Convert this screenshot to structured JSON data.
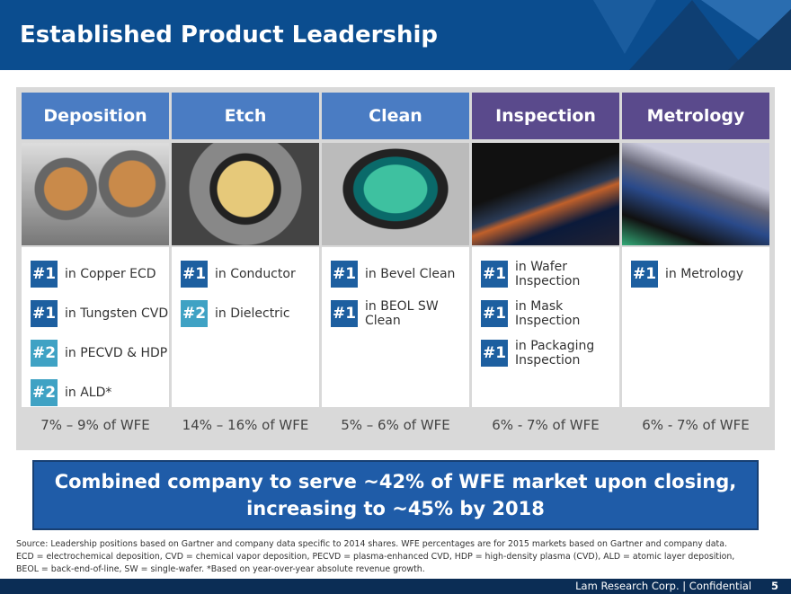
{
  "header": {
    "title": "Established Product Leadership"
  },
  "columns": [
    {
      "header": "Deposition",
      "color": "#4a7cc3",
      "share": "7% – 9% of WFE",
      "rankings": [
        {
          "rank": "#1",
          "color": "#1d5fa0",
          "lines": [
            "in Copper ECD"
          ]
        },
        {
          "rank": "#1",
          "color": "#1d5fa0",
          "lines": [
            "in Tungsten CVD"
          ]
        },
        {
          "rank": "#2",
          "color": "#3fa2c4",
          "lines": [
            "in PECVD & HDP"
          ]
        },
        {
          "rank": "#2",
          "color": "#3fa2c4",
          "lines": [
            "in ALD*"
          ]
        }
      ]
    },
    {
      "header": "Etch",
      "color": "#4a7cc3",
      "share": "14% – 16% of WFE",
      "rankings": [
        {
          "rank": "#1",
          "color": "#1d5fa0",
          "lines": [
            "in Conductor"
          ]
        },
        {
          "rank": "#2",
          "color": "#3fa2c4",
          "lines": [
            "in Dielectric"
          ]
        }
      ]
    },
    {
      "header": "Clean",
      "color": "#4a7cc3",
      "share": "5% – 6% of WFE",
      "rankings": [
        {
          "rank": "#1",
          "color": "#1d5fa0",
          "lines": [
            "in Bevel Clean"
          ]
        },
        {
          "rank": "#1",
          "color": "#1d5fa0",
          "lines": [
            "in BEOL SW",
            "Clean"
          ]
        }
      ]
    },
    {
      "header": "Inspection",
      "color": "#5a4a8c",
      "share": "6% - 7% of WFE",
      "rankings": [
        {
          "rank": "#1",
          "color": "#1d5fa0",
          "lines": [
            "in Wafer",
            "Inspection"
          ]
        },
        {
          "rank": "#1",
          "color": "#1d5fa0",
          "lines": [
            "in Mask",
            "Inspection"
          ]
        },
        {
          "rank": "#1",
          "color": "#1d5fa0",
          "lines": [
            "in Packaging",
            "Inspection"
          ]
        }
      ]
    },
    {
      "header": "Metrology",
      "color": "#5a4a8c",
      "share": "6% - 7% of WFE",
      "rankings": [
        {
          "rank": "#1",
          "color": "#1d5fa0",
          "lines": [
            "in Metrology"
          ]
        }
      ]
    }
  ],
  "banner": {
    "lines": [
      "Combined company to serve ~42% of WFE market upon closing,",
      "increasing to ~45% by 2018"
    ]
  },
  "source": {
    "lines": [
      "Source:  Leadership positions based on Gartner and company data specific to 2014 shares. WFE percentages are for 2015 markets based on Gartner and company data.",
      "ECD = electrochemical deposition, CVD = chemical vapor deposition, PECVD = plasma-enhanced CVD, HDP = high-density plasma (CVD), ALD = atomic layer deposition,",
      "BEOL = back-end-of-line, SW = single-wafer. *Based on year-over-year absolute revenue growth."
    ]
  },
  "footer": {
    "text": "Lam Research Corp. | Confidential",
    "page": "5"
  }
}
